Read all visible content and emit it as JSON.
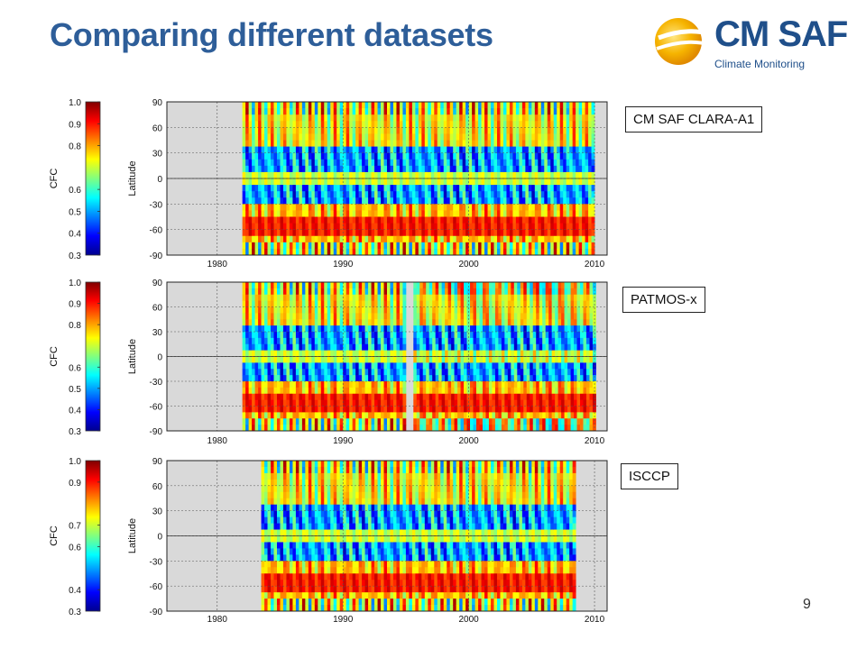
{
  "slide": {
    "title": "Comparing different datasets",
    "page_number": "9",
    "logo": {
      "text": "CM SAF",
      "subtitle": "Climate Monitoring"
    }
  },
  "colors": {
    "title": "#2e5e99",
    "logo": "#1f4f8a",
    "missing_data": "#d9d9d9",
    "colorscale": [
      "#00008f",
      "#0000ff",
      "#0080ff",
      "#00ffff",
      "#80ff80",
      "#ffff00",
      "#ff8000",
      "#ff0000",
      "#800000"
    ]
  },
  "chart_data": [
    {
      "type": "heatmap",
      "dataset": "CM SAF CLARA-A1",
      "xlabel": "",
      "ylabel": "Latitude",
      "colorbar_label": "CFC",
      "colorbar_ticks": [
        "1.0",
        "0.9",
        "0.8",
        "0.6",
        "0.5",
        "0.4",
        "0.3"
      ],
      "colorbar_values": [
        1.0,
        0.9,
        0.8,
        0.6,
        0.5,
        0.4,
        0.3
      ],
      "color_range": [
        0.3,
        1.0
      ],
      "xlim": [
        1976,
        2011
      ],
      "ylim": [
        -90,
        90
      ],
      "x_ticks": [
        "1980",
        "1990",
        "2000",
        "2010"
      ],
      "y_ticks": [
        "90",
        "60",
        "30",
        "0",
        "-30",
        "-60",
        "-90"
      ],
      "data_coverage": [
        [
          1982,
          2010
        ]
      ],
      "grid": true
    },
    {
      "type": "heatmap",
      "dataset": "PATMOS-x",
      "xlabel": "",
      "ylabel": "Latitude",
      "colorbar_label": "CFC",
      "colorbar_ticks": [
        "1.0",
        "0.9",
        "0.8",
        "0.6",
        "0.5",
        "0.4",
        "0.3"
      ],
      "colorbar_values": [
        1.0,
        0.9,
        0.8,
        0.6,
        0.5,
        0.4,
        0.3
      ],
      "color_range": [
        0.3,
        1.0
      ],
      "xlim": [
        1976,
        2011
      ],
      "ylim": [
        -90,
        90
      ],
      "x_ticks": [
        "1980",
        "1990",
        "2000",
        "2010"
      ],
      "y_ticks": [
        "90",
        "60",
        "30",
        "0",
        "-30",
        "-60",
        "-90"
      ],
      "data_coverage": [
        [
          1982,
          1995
        ],
        [
          1995.6,
          2010
        ]
      ],
      "grid": true
    },
    {
      "type": "heatmap",
      "dataset": "ISCCP",
      "xlabel": "",
      "ylabel": "Latitude",
      "colorbar_label": "CFC",
      "colorbar_ticks": [
        "1.0",
        "0.9",
        "0.7",
        "0.6",
        "0.4",
        "0.3"
      ],
      "colorbar_values": [
        1.0,
        0.9,
        0.7,
        0.6,
        0.4,
        0.3
      ],
      "color_range": [
        0.3,
        1.0
      ],
      "xlim": [
        1976,
        2011
      ],
      "ylim": [
        -90,
        90
      ],
      "x_ticks": [
        "1980",
        "1990",
        "2000",
        "2010"
      ],
      "y_ticks": [
        "90",
        "60",
        "30",
        "0",
        "-30",
        "-60",
        "-90"
      ],
      "data_coverage": [
        [
          1983.5,
          2008.5
        ]
      ],
      "grid": true
    }
  ]
}
